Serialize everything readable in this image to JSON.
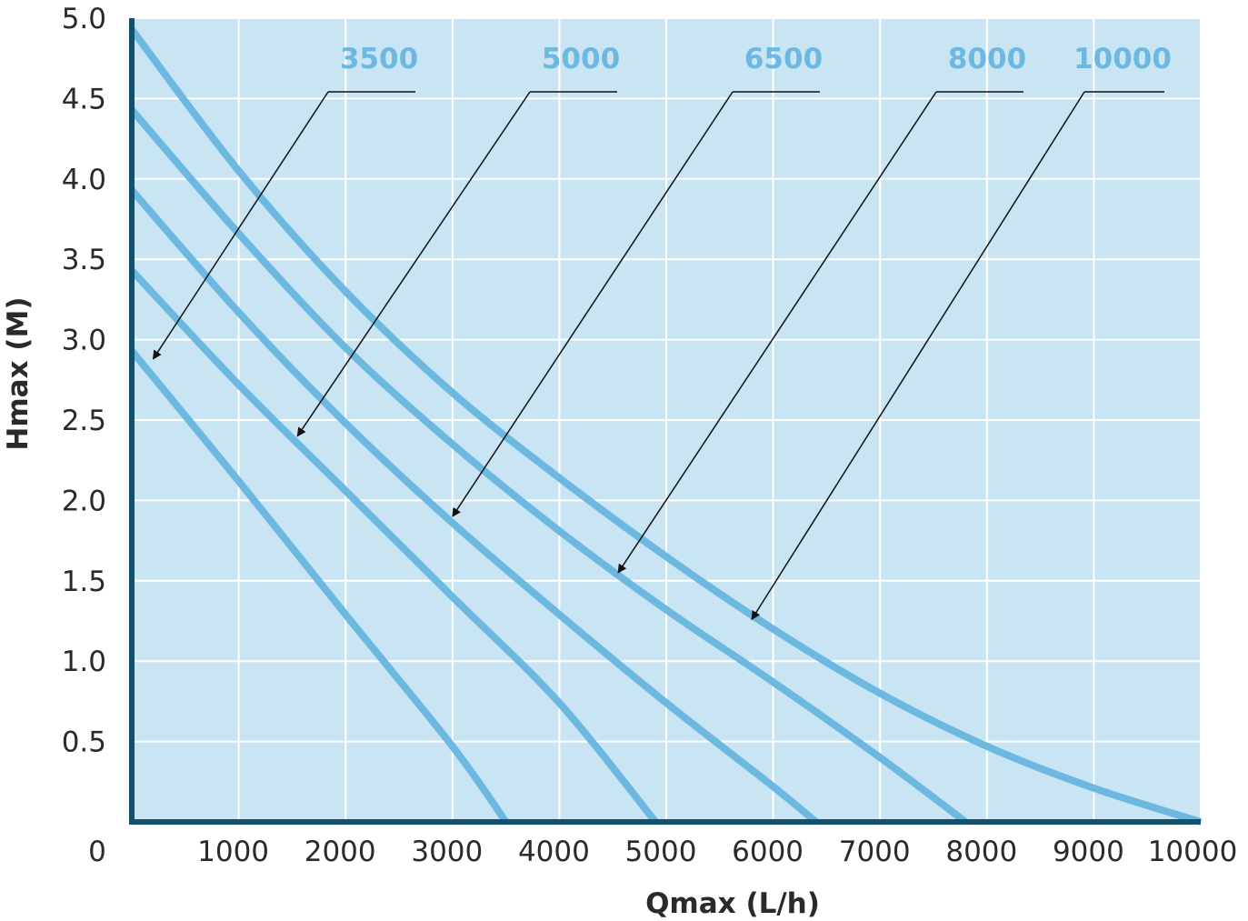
{
  "chart_data": {
    "type": "line",
    "title": "",
    "xlabel": "Qmax (L/h)",
    "ylabel": "Hmax (M)",
    "xlim": [
      0,
      10000
    ],
    "ylim": [
      0,
      5.0
    ],
    "x_ticks": [
      "0",
      "1000",
      "2000",
      "3000",
      "4000",
      "5000",
      "6000",
      "7000",
      "8000",
      "9000",
      "10000"
    ],
    "y_ticks": [
      "0.5",
      "1.0",
      "1.5",
      "2.0",
      "2.5",
      "3.0",
      "3.5",
      "4.0",
      "4.5",
      "5.0"
    ],
    "grid": true,
    "legend": "none",
    "series": [
      {
        "name": "3500",
        "x": [
          0,
          1000,
          2000,
          3000,
          3500
        ],
        "y": [
          2.93,
          2.12,
          1.29,
          0.47,
          0.0
        ]
      },
      {
        "name": "5000",
        "x": [
          0,
          1000,
          2000,
          3000,
          4000,
          4900
        ],
        "y": [
          3.43,
          2.72,
          2.06,
          1.4,
          0.74,
          0.0
        ]
      },
      {
        "name": "6500",
        "x": [
          0,
          1000,
          2000,
          3000,
          4000,
          5000,
          6000,
          6400
        ],
        "y": [
          3.93,
          3.17,
          2.48,
          1.86,
          1.29,
          0.74,
          0.22,
          0.0
        ]
      },
      {
        "name": "8000",
        "x": [
          0,
          1000,
          2000,
          3000,
          4000,
          5000,
          6000,
          7000,
          7800
        ],
        "y": [
          4.43,
          3.66,
          2.95,
          2.35,
          1.81,
          1.32,
          0.87,
          0.4,
          0.0
        ]
      },
      {
        "name": "10000",
        "x": [
          0,
          1000,
          2000,
          3000,
          4000,
          5000,
          6000,
          7000,
          8000,
          9000,
          10000
        ],
        "y": [
          4.93,
          4.05,
          3.3,
          2.67,
          2.14,
          1.65,
          1.2,
          0.8,
          0.47,
          0.21,
          0.0
        ]
      }
    ],
    "callouts": [
      {
        "series": "3500",
        "label": "3500",
        "x": 200,
        "y": 2.88
      },
      {
        "series": "5000",
        "label": "5000",
        "x": 1550,
        "y": 2.4
      },
      {
        "series": "6500",
        "label": "6500",
        "x": 3000,
        "y": 1.9
      },
      {
        "series": "8000",
        "label": "8000",
        "x": 4550,
        "y": 1.55
      },
      {
        "series": "10000",
        "label": "10000",
        "x": 5800,
        "y": 1.26
      }
    ],
    "colors": {
      "plot_bg": "#c9e4f2",
      "grid": "#ffffff",
      "curve": "#6db8e1",
      "axis": "#12506e",
      "label": "#6db8e1",
      "arrow": "#111111"
    }
  }
}
